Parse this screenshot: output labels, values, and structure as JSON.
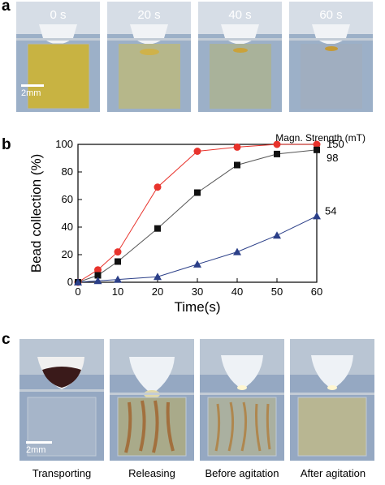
{
  "panels": {
    "a": {
      "letter": "a",
      "time_labels": [
        "0 s",
        "20 s",
        "40 s",
        "60 s"
      ],
      "scale_label": "2mm"
    },
    "b": {
      "letter": "b"
    },
    "c": {
      "letter": "c",
      "captions": [
        "Transporting",
        "Releasing",
        "Before agitation",
        "After agitation"
      ],
      "scale_label": "2mm"
    }
  },
  "chart_data": {
    "type": "line",
    "xlabel": "Time(s)",
    "ylabel": "Bead collection (%)",
    "legend_title": "Magn. Strength (mT)",
    "xlim": [
      0,
      60
    ],
    "ylim": [
      0,
      100
    ],
    "xticks": [
      0,
      10,
      20,
      30,
      40,
      50,
      60
    ],
    "yticks": [
      0,
      20,
      40,
      60,
      80,
      100
    ],
    "x": [
      0,
      5,
      10,
      20,
      30,
      40,
      50,
      60
    ],
    "series": [
      {
        "name": "150",
        "marker": "circle",
        "color": "#e8332c",
        "line_color": "#e8332c",
        "values": [
          0,
          9,
          22,
          69,
          95,
          98,
          100,
          100
        ]
      },
      {
        "name": "98",
        "marker": "square",
        "color": "#111111",
        "line_color": "#555555",
        "values": [
          0,
          5,
          15,
          39,
          65,
          85,
          93,
          96
        ]
      },
      {
        "name": "54",
        "marker": "triangle",
        "color": "#2b3f88",
        "line_color": "#2b3f88",
        "values": [
          0,
          1,
          2,
          4,
          13,
          22,
          34,
          48
        ]
      }
    ]
  }
}
